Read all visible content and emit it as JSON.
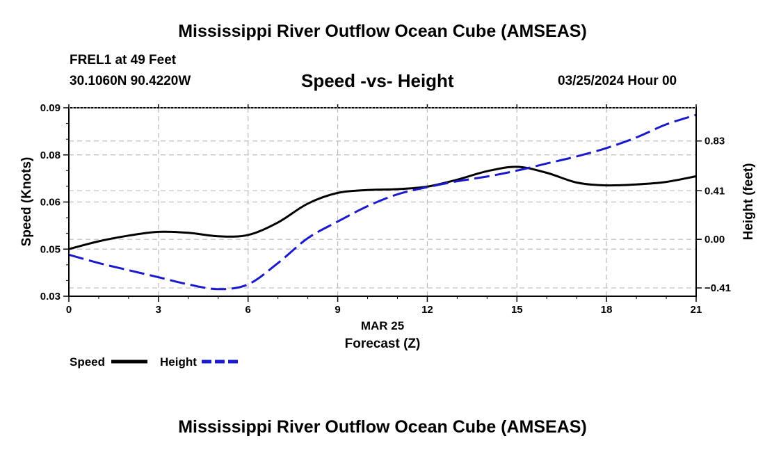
{
  "page": {
    "title": "Mississippi River Outflow Ocean Cube (AMSEAS)",
    "station": "FREL1 at 49 Feet",
    "coords": "30.1060N  90.4220W",
    "subtitle": "Speed -vs- Height",
    "datetime": "03/25/2024 Hour 00",
    "footer_title": "Mississippi River Outflow Ocean Cube (AMSEAS)"
  },
  "chart_data": {
    "type": "line",
    "title": "Speed -vs- Height",
    "xlabel": "Forecast (Z)",
    "xlabel_date": "MAR 25",
    "ylabel": "Speed (Knots)",
    "y2label": "Height (feet)",
    "xlim": [
      0,
      21
    ],
    "ylim": [
      0.03,
      0.09
    ],
    "y2lim": [
      -0.48,
      1.11
    ],
    "x_ticks": [
      "0",
      "3",
      "6",
      "9",
      "12",
      "15",
      "18",
      "21"
    ],
    "y_ticks": [
      {
        "value": 0.03,
        "label": "0.03"
      },
      {
        "value": 0.045,
        "label": "0.05"
      },
      {
        "value": 0.06,
        "label": "0.06"
      },
      {
        "value": 0.075,
        "label": "0.08"
      },
      {
        "value": 0.09,
        "label": "0.09"
      }
    ],
    "y2_ticks": [
      {
        "value": -0.41,
        "label": "-0.41"
      },
      {
        "value": 0.0,
        "label": "0.00"
      },
      {
        "value": 0.41,
        "label": "0.41"
      },
      {
        "value": 0.83,
        "label": "0.83"
      }
    ],
    "grid": true,
    "series": [
      {
        "name": "Speed",
        "axis": "left",
        "color": "#000000",
        "dash": "solid",
        "x": [
          0,
          1,
          2,
          3,
          4,
          5,
          6,
          7,
          8,
          9,
          10,
          11,
          12,
          13,
          14,
          15,
          16,
          17,
          18,
          19,
          20,
          21
        ],
        "values": [
          0.045,
          0.0475,
          0.0493,
          0.0505,
          0.0502,
          0.0491,
          0.0495,
          0.0535,
          0.0595,
          0.0629,
          0.0638,
          0.0641,
          0.0649,
          0.0671,
          0.0698,
          0.0712,
          0.0693,
          0.0662,
          0.0653,
          0.0656,
          0.0664,
          0.0682
        ]
      },
      {
        "name": "Height",
        "axis": "right",
        "color": "#1a1acc",
        "dash": "dashed",
        "x": [
          0,
          1,
          2,
          3,
          4,
          5,
          6,
          7,
          8,
          9,
          10,
          11,
          12,
          13,
          14,
          15,
          16,
          17,
          18,
          19,
          20,
          21
        ],
        "values": [
          -0.13,
          -0.2,
          -0.26,
          -0.32,
          -0.38,
          -0.42,
          -0.38,
          -0.2,
          0.01,
          0.15,
          0.28,
          0.38,
          0.44,
          0.49,
          0.53,
          0.58,
          0.64,
          0.7,
          0.77,
          0.86,
          0.97,
          1.05
        ]
      }
    ],
    "legend": [
      {
        "label": "Speed",
        "color": "#000000",
        "dash": "solid"
      },
      {
        "label": "Height",
        "color": "#1a1acc",
        "dash": "dashed"
      }
    ],
    "legend_position": "bottom-left"
  }
}
